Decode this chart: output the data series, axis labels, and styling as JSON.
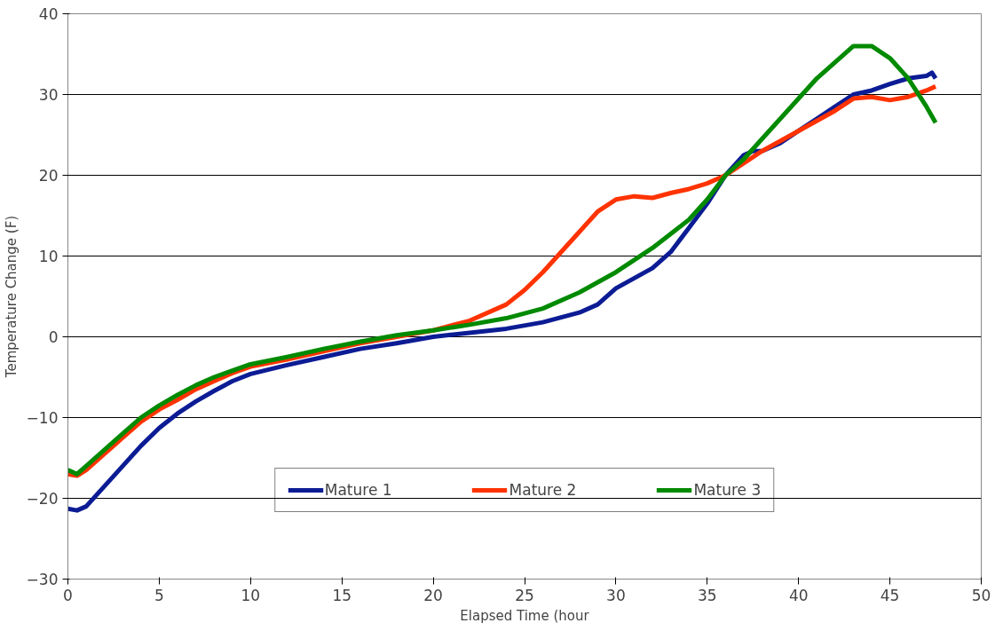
{
  "chart_data": {
    "type": "line",
    "xlabel": "Elapsed Time (hour",
    "ylabel": "Temperature Change (F)",
    "xlim": [
      0,
      50
    ],
    "xticks": [
      0,
      5,
      10,
      15,
      20,
      25,
      30,
      35,
      40,
      45,
      50
    ],
    "ylim": [
      -30,
      40
    ],
    "yticks": [
      -30,
      -20,
      -10,
      0,
      10,
      20,
      30,
      40
    ],
    "grid": "y",
    "legend": "bottom",
    "marker": "none",
    "line_style": "solid",
    "series": [
      {
        "name": "Mature 1",
        "color": "#0c1c94",
        "x": [
          0,
          0.5,
          1,
          2,
          3,
          4,
          5,
          6,
          7,
          8,
          9,
          10,
          12,
          14,
          16,
          18,
          20,
          22,
          24,
          26,
          28,
          29,
          30,
          32,
          33,
          34,
          35,
          36,
          37,
          37.5,
          38,
          39,
          40,
          41,
          42,
          43,
          44,
          45,
          46,
          47,
          47.3,
          47.5
        ],
        "values": [
          -21.3,
          -21.5,
          -21,
          -18.5,
          -16,
          -13.5,
          -11.3,
          -9.5,
          -8,
          -6.7,
          -5.5,
          -4.6,
          -3.5,
          -2.5,
          -1.5,
          -0.8,
          0,
          0.5,
          1,
          1.8,
          3,
          4,
          6,
          8.5,
          10.5,
          13.5,
          16.5,
          20,
          22.5,
          23,
          23,
          24,
          25.5,
          27,
          28.5,
          30,
          30.5,
          31.3,
          32,
          32.3,
          32.7,
          32
        ]
      },
      {
        "name": "Mature 2",
        "color": "#ff3300",
        "x": [
          0,
          0.5,
          1,
          2,
          3,
          4,
          5,
          6,
          7,
          8,
          9,
          10,
          12,
          14,
          16,
          18,
          20,
          22,
          24,
          25,
          26,
          27,
          28,
          29,
          30,
          31,
          32,
          33,
          34,
          35,
          36,
          37,
          38,
          40,
          42,
          43,
          44,
          45,
          46,
          47,
          47.5
        ],
        "values": [
          -17,
          -17.2,
          -16.5,
          -14.5,
          -12.5,
          -10.5,
          -9,
          -7.8,
          -6.5,
          -5.5,
          -4.5,
          -3.7,
          -2.8,
          -1.8,
          -0.8,
          0,
          0.8,
          2,
          4,
          5.8,
          8,
          10.5,
          13,
          15.5,
          17,
          17.4,
          17.2,
          17.8,
          18.3,
          19,
          20,
          21.5,
          23,
          25.5,
          28,
          29.5,
          29.7,
          29.3,
          29.7,
          30.5,
          31
        ]
      },
      {
        "name": "Mature 3",
        "color": "#008a00",
        "x": [
          0,
          0.5,
          1,
          2,
          3,
          4,
          5,
          6,
          7,
          8,
          9,
          10,
          12,
          14,
          16,
          18,
          20,
          22,
          24,
          26,
          28,
          30,
          32,
          34,
          35,
          36,
          37,
          38,
          39,
          40,
          41,
          42,
          43,
          44,
          45,
          46,
          47,
          47.5
        ],
        "values": [
          -16.5,
          -17,
          -16,
          -14,
          -12,
          -10,
          -8.5,
          -7.2,
          -6,
          -5,
          -4.2,
          -3.4,
          -2.5,
          -1.5,
          -0.6,
          0.2,
          0.8,
          1.5,
          2.3,
          3.5,
          5.5,
          8,
          11,
          14.5,
          17,
          20,
          22,
          24.5,
          27,
          29.5,
          32,
          34,
          36,
          36,
          34.5,
          32,
          28.5,
          26.5
        ]
      }
    ]
  }
}
